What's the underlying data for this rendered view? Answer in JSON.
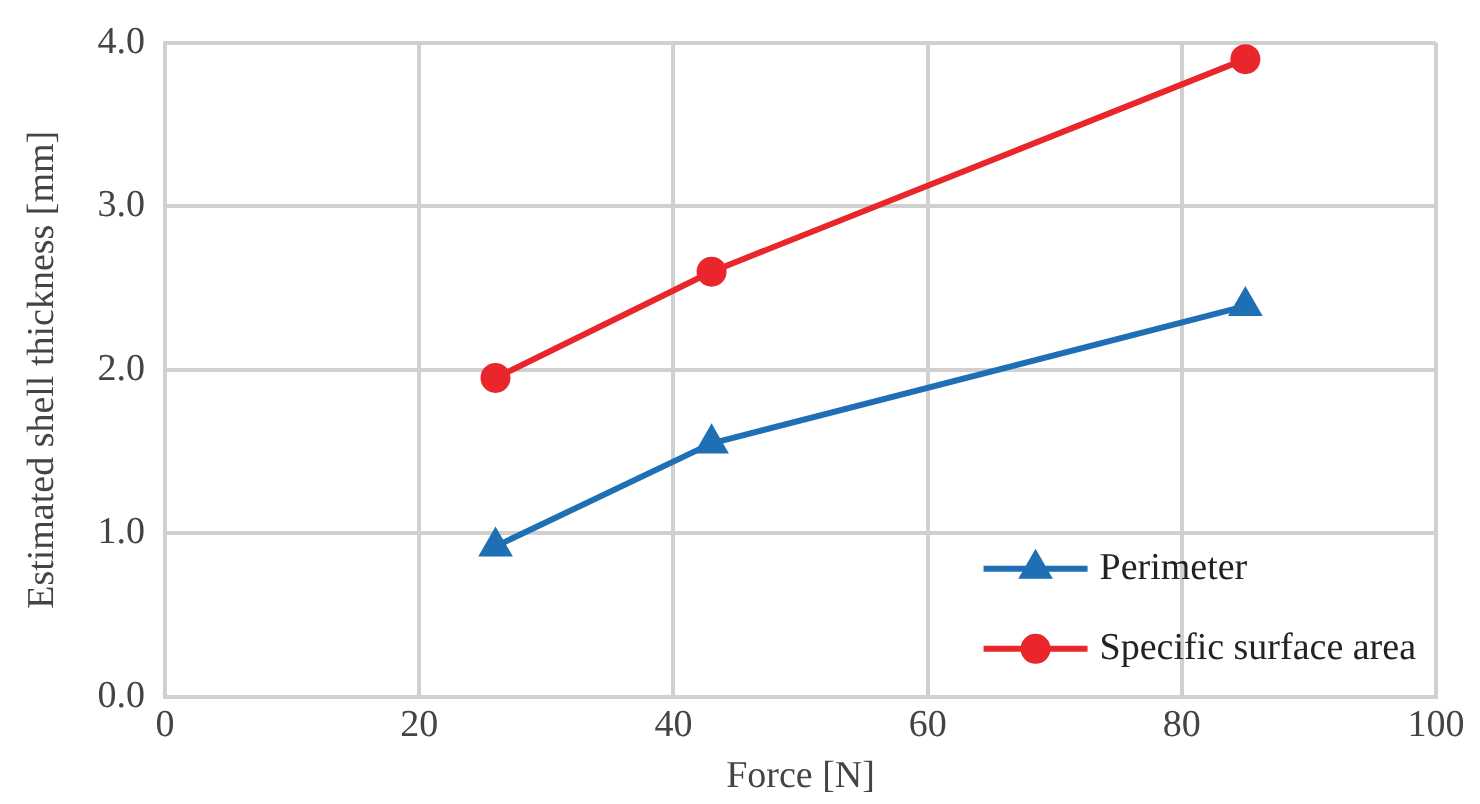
{
  "chart_data": {
    "type": "line",
    "xlabel": "Force [N]",
    "ylabel": "Estimated shell thickness [mm]",
    "x": [
      26,
      43,
      85
    ],
    "series": [
      {
        "name": "Perimeter",
        "color": "#1f6fb5",
        "marker": "triangle",
        "values": [
          0.92,
          1.55,
          2.39
        ]
      },
      {
        "name": "Specific surface area",
        "color": "#e8262c",
        "marker": "circle",
        "values": [
          1.95,
          2.6,
          3.9
        ]
      }
    ],
    "xlim": [
      0,
      100
    ],
    "xticks": [
      0,
      20,
      40,
      60,
      80,
      100
    ],
    "ylim": [
      0,
      4
    ],
    "yticks": [
      {
        "value": 0,
        "label": "0.0"
      },
      {
        "value": 1,
        "label": "1.0"
      },
      {
        "value": 2,
        "label": "2.0"
      },
      {
        "value": 3,
        "label": "3.0"
      },
      {
        "value": 4,
        "label": "4.0"
      }
    ],
    "grid": true,
    "legend": "bottom right",
    "line_style": "solid"
  }
}
